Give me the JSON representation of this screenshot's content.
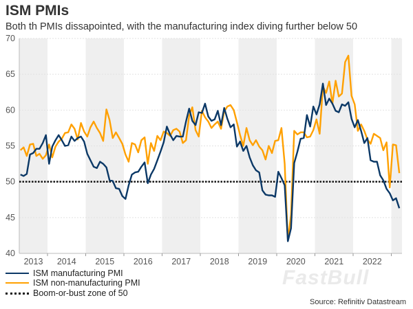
{
  "chart_data": {
    "type": "line",
    "title": "ISM PMIs",
    "subtitle": "Both th PMIs dissapointed, with the manufacturing index diving further below 50",
    "x_start": "2013-04",
    "x_end": "2023-03",
    "x_frequency": "monthly",
    "x_tick_labels": [
      "2013",
      "2014",
      "2015",
      "2016",
      "2017",
      "2018",
      "2019",
      "2020",
      "2021",
      "2022"
    ],
    "ylim": [
      40,
      70
    ],
    "y_ticks": [
      40,
      45,
      50,
      55,
      60,
      65,
      70
    ],
    "grid": true,
    "alternating_year_shading": true,
    "legend_placement": "bottom-left",
    "series": [
      {
        "name": "ISM manufacturing PMI",
        "color": "#0b3866",
        "values": [
          51.0,
          50.8,
          51.1,
          53.8,
          54.0,
          54.6,
          54.6,
          55.4,
          56.5,
          52.5,
          54.9,
          55.8,
          56.5,
          55.8,
          55.0,
          55.1,
          56.3,
          55.7,
          56.1,
          56.3,
          55.6,
          53.9,
          53.0,
          52.1,
          51.9,
          52.8,
          52.5,
          52.0,
          50.2,
          50.1,
          49.1,
          49.0,
          48.0,
          47.6,
          49.5,
          51.0,
          51.3,
          51.4,
          52.1,
          52.7,
          49.8,
          51.0,
          51.8,
          53.0,
          54.2,
          55.5,
          57.7,
          56.6,
          55.8,
          56.4,
          56.3,
          56.3,
          58.4,
          60.2,
          58.5,
          57.9,
          59.7,
          59.6,
          60.9,
          59.1,
          58.5,
          58.7,
          59.9,
          57.9,
          60.3,
          58.8,
          57.6,
          58.0,
          54.9,
          55.6,
          54.3,
          55.0,
          53.4,
          52.3,
          51.6,
          51.3,
          48.8,
          48.2,
          48.1,
          48.1,
          47.9,
          51.4,
          50.5,
          49.5,
          41.7,
          43.5,
          52.6,
          54.2,
          56.0,
          56.1,
          59.3,
          57.7,
          60.5,
          59.4,
          60.8,
          63.7,
          60.7,
          61.6,
          60.9,
          59.9,
          59.7,
          60.8,
          60.6,
          61.1,
          58.8,
          57.6,
          58.6,
          57.1,
          55.4,
          56.1,
          53.0,
          52.8,
          52.8,
          50.9,
          50.2,
          49.0,
          48.4,
          47.4,
          47.7,
          46.3
        ]
      },
      {
        "name": "ISM non-manufacturing PMI",
        "color": "#ffa000",
        "values": [
          54.4,
          54.8,
          53.6,
          55.2,
          55.3,
          53.6,
          53.9,
          53.2,
          53.7,
          55.2,
          53.4,
          54.9,
          55.6,
          56.0,
          56.8,
          56.9,
          58.0,
          57.4,
          55.9,
          58.2,
          57.0,
          56.3,
          57.6,
          58.4,
          57.5,
          56.8,
          55.7,
          60.1,
          58.6,
          56.1,
          56.9,
          56.1,
          55.3,
          53.8,
          52.8,
          55.4,
          55.2,
          54.1,
          55.8,
          56.2,
          52.5,
          55.4,
          54.3,
          56.4,
          55.8,
          57.0,
          56.8,
          56.4,
          57.2,
          57.4,
          57.0,
          55.4,
          55.8,
          59.2,
          60.4,
          57.2,
          56.3,
          59.9,
          59.0,
          58.4,
          57.5,
          58.0,
          58.4,
          57.4,
          59.8,
          60.5,
          60.7,
          60.0,
          58.3,
          56.5,
          55.0,
          57.5,
          55.8,
          55.1,
          55.8,
          54.9,
          54.4,
          53.1,
          55.0,
          54.0,
          55.7,
          55.8,
          57.5,
          52.5,
          41.8,
          45.4,
          57.1,
          56.6,
          56.9,
          56.9,
          56.2,
          56.3,
          57.2,
          58.7,
          56.7,
          63.3,
          62.4,
          64.0,
          60.9,
          64.1,
          61.9,
          62.3,
          66.7,
          67.6,
          62.0,
          60.8,
          57.1,
          58.0,
          57.1,
          55.9,
          55.3,
          56.7,
          56.4,
          56.1,
          54.4,
          55.5,
          49.2,
          55.2,
          55.1,
          51.2
        ]
      },
      {
        "name": "Boom-or-bust zone of 50",
        "color": "#111111",
        "style": "dotted",
        "value": 50
      }
    ]
  },
  "source": "Source: Refinitiv Datastream",
  "watermark": "FastBull",
  "colors": {
    "axis_text": "#555555",
    "shading": "#efefef"
  }
}
